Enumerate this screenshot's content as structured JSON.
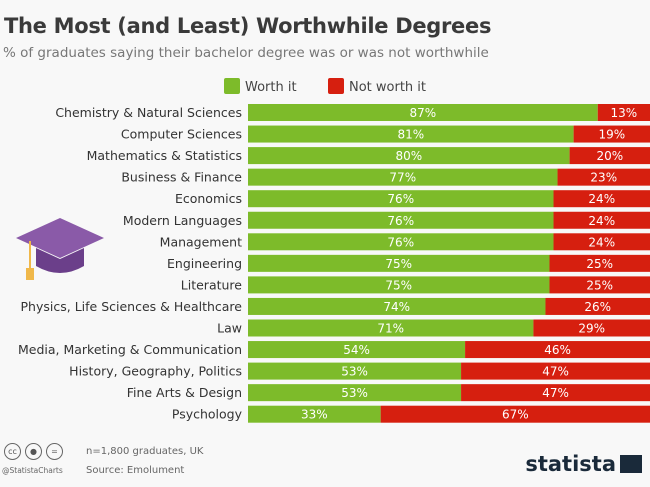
{
  "footer": {
    "note": "n=1,800 graduates, UK",
    "source": "Source: Emolument",
    "handle": "@StatistaCharts",
    "brand": "statista",
    "cc_icons": [
      "cc",
      "by",
      "nd"
    ]
  },
  "colors": {
    "worth": "#7dbb2a",
    "not_worth": "#d61f0f"
  },
  "chart_data": {
    "type": "bar",
    "stacked": true,
    "orientation": "horizontal",
    "title": "The Most (and Least) Worthwhile Degrees",
    "subtitle": "% of graduates saying their bachelor degree was or was not worthwhile",
    "legend": [
      "Worth it",
      "Not worth it"
    ],
    "legend_position": "top-center",
    "categories": [
      "Chemistry & Natural Sciences",
      "Computer Sciences",
      "Mathematics & Statistics",
      "Business & Finance",
      "Economics",
      "Modern Languages",
      "Management",
      "Engineering",
      "Literature",
      "Physics, Life Sciences & Healthcare",
      "Law",
      "Media, Marketing & Communication",
      "History, Geography, Politics",
      "Fine Arts & Design",
      "Psychology"
    ],
    "series": [
      {
        "name": "Worth it",
        "values": [
          87,
          81,
          80,
          77,
          76,
          76,
          76,
          75,
          75,
          74,
          71,
          54,
          53,
          53,
          33
        ]
      },
      {
        "name": "Not worth it",
        "values": [
          13,
          19,
          20,
          23,
          24,
          24,
          24,
          25,
          25,
          26,
          29,
          46,
          47,
          47,
          67
        ]
      }
    ],
    "xlim": [
      0,
      100
    ],
    "unit": "%"
  }
}
